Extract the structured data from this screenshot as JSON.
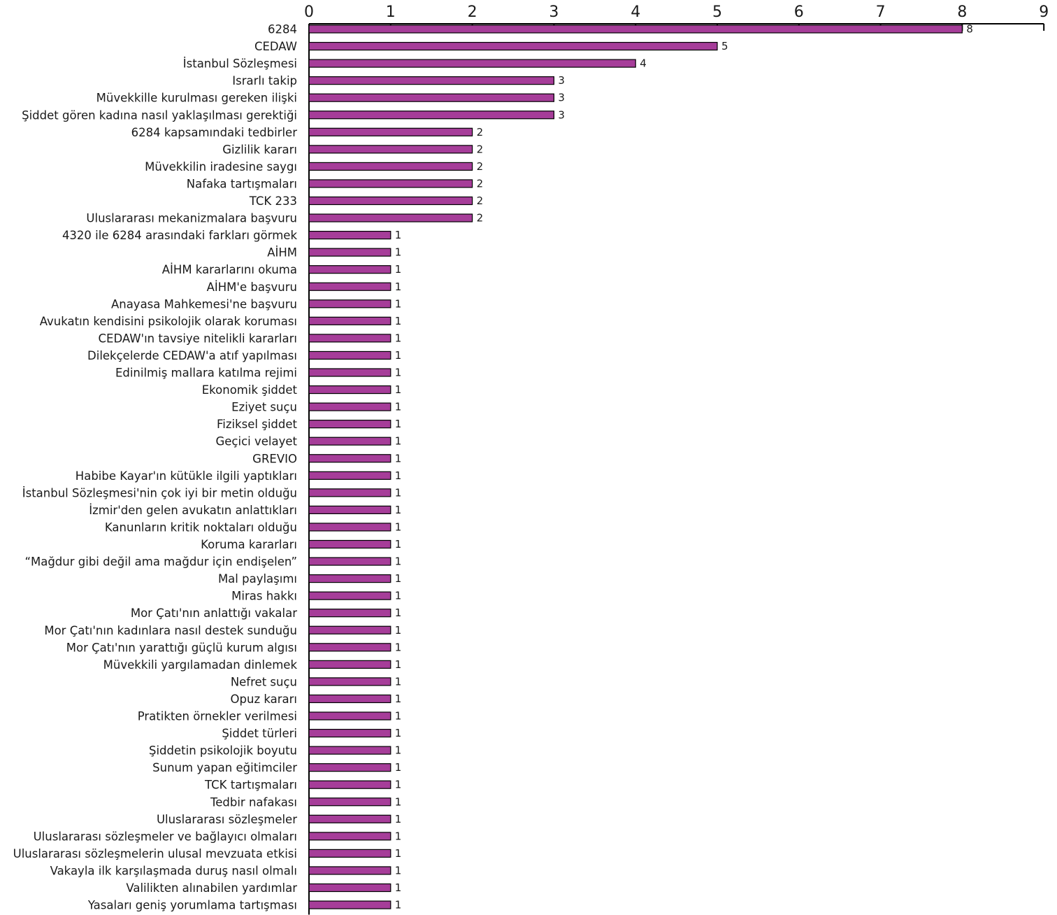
{
  "chart_data": {
    "type": "bar",
    "orientation": "horizontal",
    "title": "",
    "xlabel": "",
    "ylabel": "",
    "xlim": [
      0,
      9
    ],
    "ticks": [
      0,
      1,
      2,
      3,
      4,
      5,
      6,
      7,
      8,
      9
    ],
    "axis_position": "top",
    "grid": false,
    "bar_color": "#a63d99",
    "categories": [
      "6284",
      "CEDAW",
      "İstanbul Sözleşmesi",
      "Israrlı takip",
      "Müvekkille kurulması gereken ilişki",
      "Şiddet gören kadına nasıl yaklaşılması gerektiği",
      "6284 kapsamındaki tedbirler",
      "Gizlilik kararı",
      "Müvekkilin iradesine saygı",
      "Nafaka tartışmaları",
      "TCK 233",
      "Uluslararası mekanizmalara başvuru",
      "4320 ile 6284 arasındaki farkları görmek",
      "AİHM",
      "AİHM kararlarını okuma",
      "AİHM'e başvuru",
      "Anayasa Mahkemesi'ne başvuru",
      "Avukatın kendisini psikolojik olarak koruması",
      "CEDAW'ın tavsiye nitelikli kararları",
      "Dilekçelerde CEDAW'a atıf yapılması",
      "Edinilmiş mallara katılma rejimi",
      "Ekonomik şiddet",
      "Eziyet suçu",
      "Fiziksel şiddet",
      "Geçici velayet",
      "GREVIO",
      "Habibe Kayar'ın kütükle ilgili yaptıkları",
      "İstanbul Sözleşmesi'nin çok iyi bir metin olduğu",
      "İzmir'den gelen avukatın anlattıkları",
      "Kanunların kritik noktaları olduğu",
      "Koruma kararları",
      "“Mağdur gibi değil ama mağdur için endişelen”",
      "Mal paylaşımı",
      "Miras hakkı",
      "Mor Çatı'nın anlattığı vakalar",
      "Mor Çatı'nın kadınlara nasıl destek sunduğu",
      "Mor Çatı'nın yarattığı güçlü kurum algısı",
      "Müvekkili yargılamadan dinlemek",
      "Nefret suçu",
      "Opuz kararı",
      "Pratikten örnekler verilmesi",
      "Şiddet türleri",
      "Şiddetin psikolojik boyutu",
      "Sunum yapan eğitimciler",
      "TCK tartışmaları",
      "Tedbir nafakası",
      "Uluslararası sözleşmeler",
      "Uluslararası sözleşmeler ve bağlayıcı olmaları",
      "Uluslararası sözleşmelerin ulusal mevzuata etkisi",
      "Vakayla ilk karşılaşmada duruş nasıl olmalı",
      "Valilikten alınabilen yardımlar",
      "Yasaları geniş yorumlama tartışması"
    ],
    "values": [
      8,
      5,
      4,
      3,
      3,
      3,
      2,
      2,
      2,
      2,
      2,
      2,
      1,
      1,
      1,
      1,
      1,
      1,
      1,
      1,
      1,
      1,
      1,
      1,
      1,
      1,
      1,
      1,
      1,
      1,
      1,
      1,
      1,
      1,
      1,
      1,
      1,
      1,
      1,
      1,
      1,
      1,
      1,
      1,
      1,
      1,
      1,
      1,
      1,
      1,
      1,
      1
    ]
  }
}
